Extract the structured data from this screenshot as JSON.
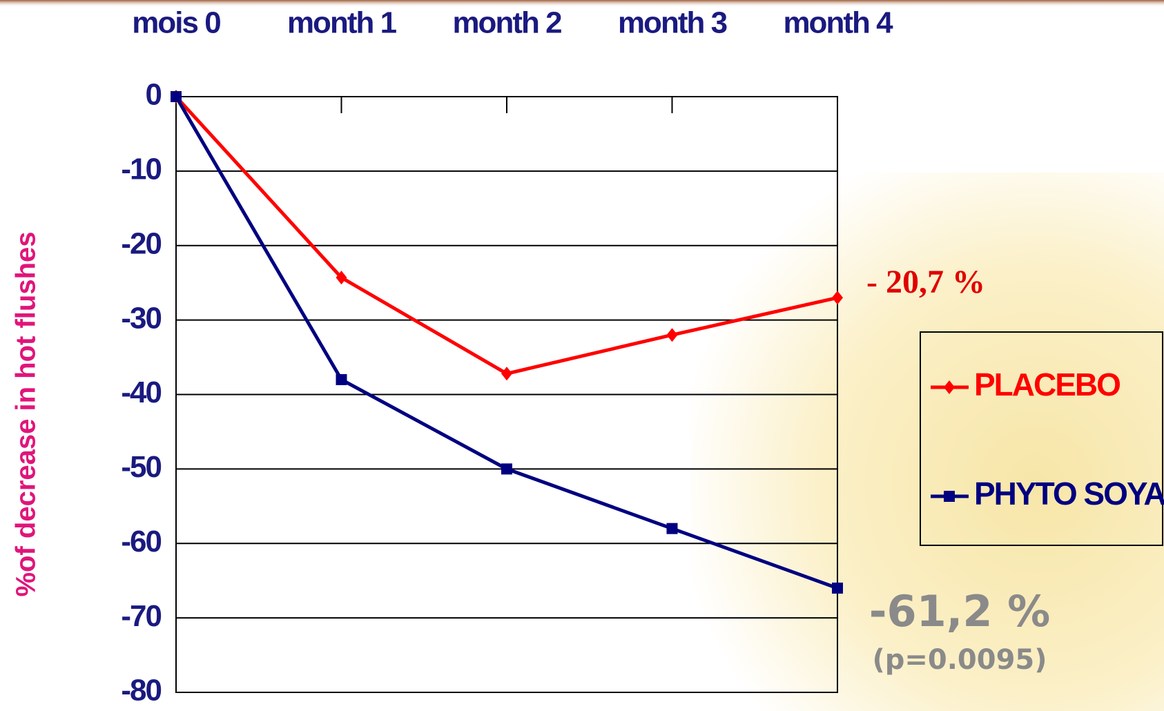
{
  "chart_data": {
    "type": "line",
    "categories": [
      "mois 0",
      "month 1",
      "month 2",
      "month 3",
      "month 4"
    ],
    "y_label": "%of decrease in hot flushes",
    "series": [
      {
        "name": "PLACEBO",
        "color": "#ff0000",
        "marker": "diamond",
        "values": [
          0,
          -24.3,
          -37.2,
          -32,
          -27
        ]
      },
      {
        "name": "PHYTO SOYA",
        "color": "#000080",
        "marker": "square",
        "values": [
          0,
          -38,
          -50,
          -58,
          -66
        ]
      }
    ],
    "ylim": [
      -80,
      0
    ],
    "yticks": [
      0,
      -10,
      -20,
      -30,
      -40,
      -50,
      -60,
      -70,
      -80
    ],
    "grid": true,
    "legend": "right",
    "annotations": [
      {
        "text": "- 20,7 %",
        "color": "#e00000"
      },
      {
        "text": "-61,2 %",
        "color": "#8a8a8a"
      },
      {
        "text": "(p=0.0095)",
        "color": "#8a8a8a"
      }
    ]
  }
}
